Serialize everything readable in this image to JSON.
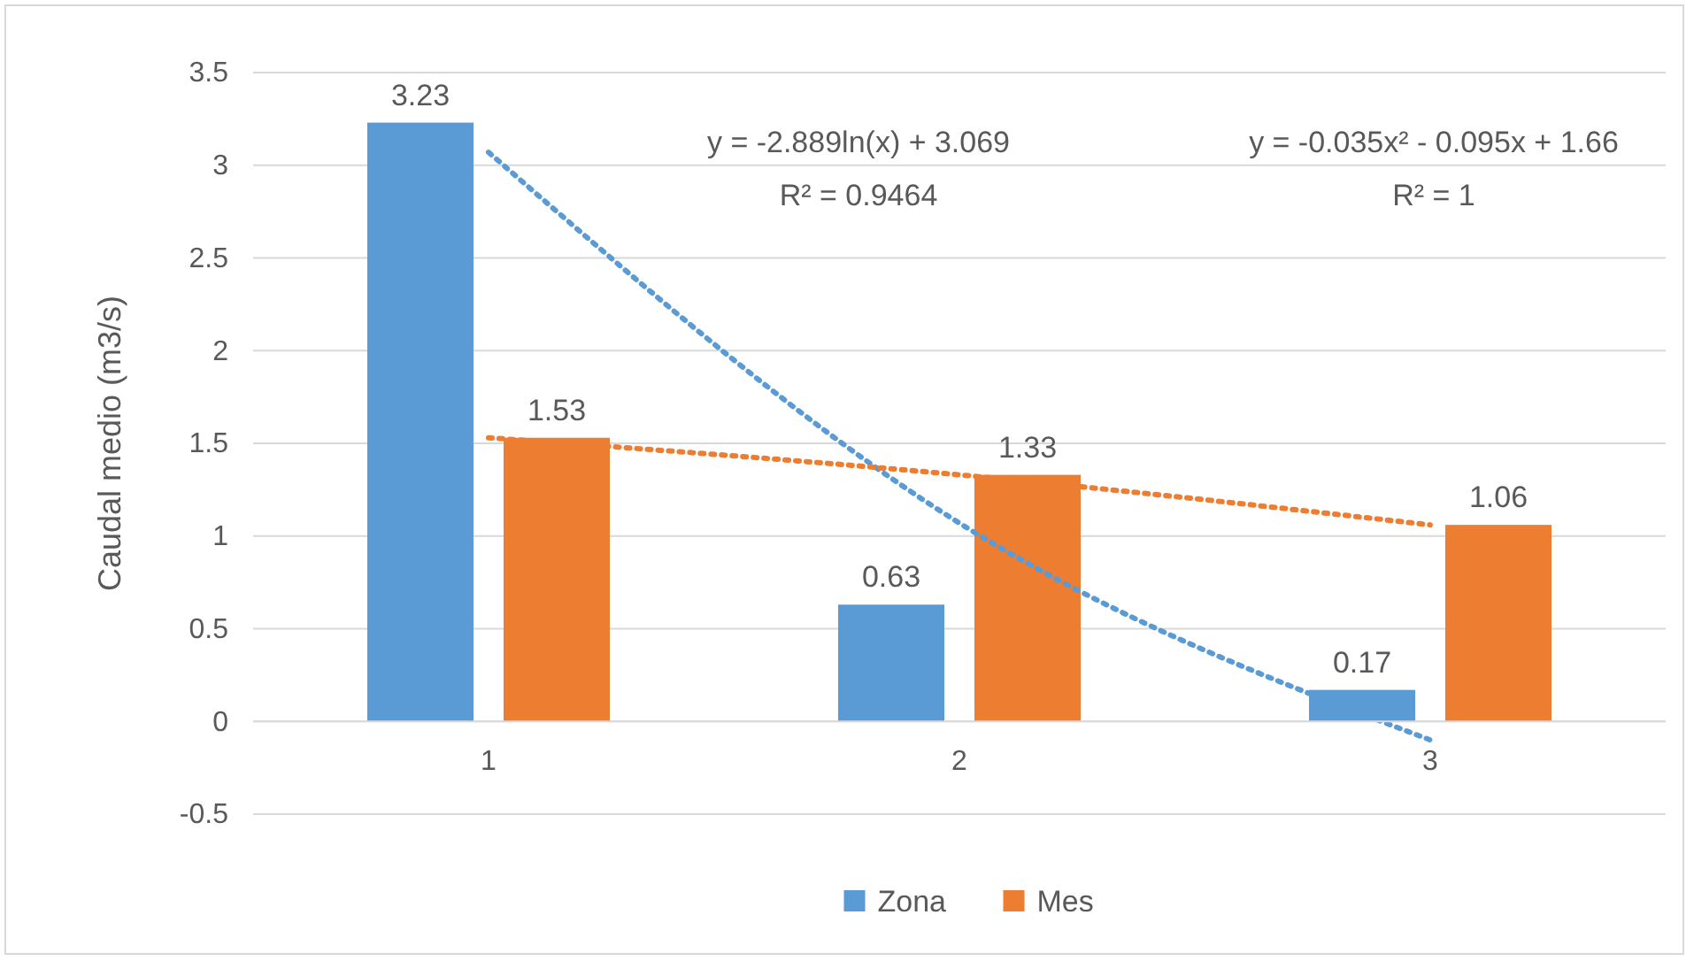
{
  "chart_data": {
    "type": "bar",
    "categories": [
      "1",
      "2",
      "3"
    ],
    "series": [
      {
        "name": "Zona",
        "color": "#5b9bd5",
        "values": [
          3.23,
          0.63,
          0.17
        ],
        "value_labels": [
          "3.23",
          "0.63",
          "0.17"
        ]
      },
      {
        "name": "Mes",
        "color": "#ed7d31",
        "values": [
          1.53,
          1.33,
          1.06
        ],
        "value_labels": [
          "1.53",
          "1.33",
          "1.06"
        ]
      },
      {
        "type": "line",
        "color": "#5b9bd5",
        "line_style": "dotted",
        "values": [
          3.07,
          1.07,
          -0.1
        ]
      },
      {
        "type": "line",
        "color": "#ed7d31",
        "line_style": "dotted",
        "values": [
          1.53,
          1.33,
          1.06
        ]
      }
    ],
    "ylabel": "Caudal medio (m3/s)",
    "ylim": [
      -0.5,
      3.5
    ],
    "yticks": [
      -0.5,
      0,
      0.5,
      1,
      1.5,
      2,
      2.5,
      3,
      3.5
    ],
    "grid": "y",
    "legend": "bottom",
    "annotations": [
      "y = -2.889ln(x) + 3.069",
      "R² = 0.9464",
      "y = -0.035x² - 0.095x + 1.66",
      "R² = 1"
    ]
  }
}
